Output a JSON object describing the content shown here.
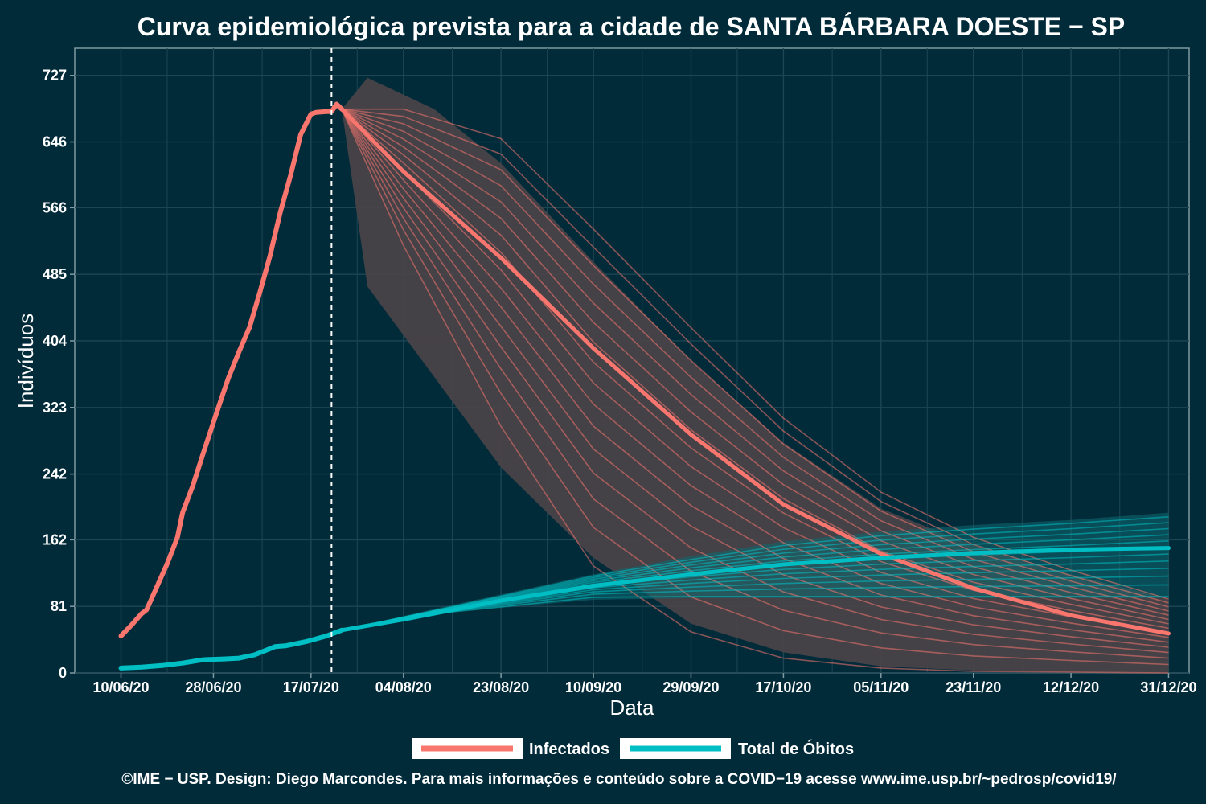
{
  "chart_data": {
    "type": "line",
    "title": "Curva epidemiológica prevista para a cidade de SANTA BÁRBARA DOESTE − SP",
    "xlabel": "Data",
    "ylabel": "Indivíduos",
    "ylim": [
      0,
      760
    ],
    "y_ticks": [
      0,
      81,
      162,
      242,
      323,
      404,
      485,
      566,
      646,
      727
    ],
    "x_ticks": [
      "10/06/20",
      "28/06/20",
      "17/07/20",
      "04/08/20",
      "23/08/20",
      "10/09/20",
      "29/09/20",
      "17/10/20",
      "05/11/20",
      "23/11/20",
      "12/12/20",
      "31/12/20"
    ],
    "x_range": [
      "2020-06-01",
      "2021-01-04"
    ],
    "forecast_start": "2020-07-21",
    "grid": true,
    "legend_position": "bottom",
    "colors": {
      "background": "#022b3a",
      "infectados": "#f8766d",
      "obitos": "#00bfc4",
      "band": "#4a4349",
      "grid": "#1d4552",
      "frame": "#7f9aa2"
    },
    "series": [
      {
        "name": "Infectados",
        "kind": "observed",
        "points": [
          [
            "2020-06-10",
            45
          ],
          [
            "2020-06-12",
            58
          ],
          [
            "2020-06-14",
            72
          ],
          [
            "2020-06-15",
            77
          ],
          [
            "2020-06-17",
            105
          ],
          [
            "2020-06-19",
            133
          ],
          [
            "2020-06-21",
            165
          ],
          [
            "2020-06-22",
            195
          ],
          [
            "2020-06-24",
            228
          ],
          [
            "2020-06-26",
            267
          ],
          [
            "2020-06-28",
            305
          ],
          [
            "2020-06-30",
            342
          ],
          [
            "2020-07-01",
            360
          ],
          [
            "2020-07-03",
            391
          ],
          [
            "2020-07-05",
            420
          ],
          [
            "2020-07-07",
            462
          ],
          [
            "2020-07-09",
            507
          ],
          [
            "2020-07-11",
            560
          ],
          [
            "2020-07-13",
            605
          ],
          [
            "2020-07-15",
            655
          ],
          [
            "2020-07-17",
            680
          ],
          [
            "2020-07-18",
            682
          ],
          [
            "2020-07-20",
            683
          ],
          [
            "2020-07-21",
            683
          ],
          [
            "2020-07-22",
            692
          ],
          [
            "2020-07-23",
            686
          ]
        ]
      },
      {
        "name": "Total de Óbitos",
        "kind": "observed",
        "points": [
          [
            "2020-06-10",
            6
          ],
          [
            "2020-06-14",
            7
          ],
          [
            "2020-06-18",
            9
          ],
          [
            "2020-06-22",
            12
          ],
          [
            "2020-06-26",
            16
          ],
          [
            "2020-06-30",
            17
          ],
          [
            "2020-07-03",
            18
          ],
          [
            "2020-07-06",
            22
          ],
          [
            "2020-07-10",
            32
          ],
          [
            "2020-07-12",
            33
          ],
          [
            "2020-07-16",
            38
          ],
          [
            "2020-07-20",
            45
          ],
          [
            "2020-07-23",
            52
          ]
        ]
      },
      {
        "name": "Infectados",
        "kind": "forecast_median",
        "points": [
          [
            "2020-07-23",
            686
          ],
          [
            "2020-08-04",
            610
          ],
          [
            "2020-08-23",
            505
          ],
          [
            "2020-09-10",
            395
          ],
          [
            "2020-09-29",
            290
          ],
          [
            "2020-10-17",
            205
          ],
          [
            "2020-11-05",
            145
          ],
          [
            "2020-11-23",
            103
          ],
          [
            "2020-12-12",
            70
          ],
          [
            "2020-12-31",
            48
          ]
        ]
      },
      {
        "name": "Total de Óbitos",
        "kind": "forecast_median",
        "points": [
          [
            "2020-07-23",
            52
          ],
          [
            "2020-08-04",
            65
          ],
          [
            "2020-08-23",
            88
          ],
          [
            "2020-09-10",
            106
          ],
          [
            "2020-09-29",
            120
          ],
          [
            "2020-10-17",
            132
          ],
          [
            "2020-11-05",
            140
          ],
          [
            "2020-11-23",
            146
          ],
          [
            "2020-12-12",
            150
          ],
          [
            "2020-12-31",
            152
          ]
        ]
      }
    ],
    "band_infectados": {
      "upper": [
        [
          "2020-07-23",
          686
        ],
        [
          "2020-07-28",
          724
        ],
        [
          "2020-08-10",
          686
        ],
        [
          "2020-08-23",
          620
        ],
        [
          "2020-09-10",
          500
        ],
        [
          "2020-09-29",
          380
        ],
        [
          "2020-10-17",
          280
        ],
        [
          "2020-11-05",
          200
        ],
        [
          "2020-11-23",
          155
        ],
        [
          "2020-12-12",
          120
        ],
        [
          "2020-12-31",
          90
        ]
      ],
      "lower": [
        [
          "2020-07-23",
          686
        ],
        [
          "2020-07-28",
          470
        ],
        [
          "2020-08-10",
          360
        ],
        [
          "2020-08-23",
          250
        ],
        [
          "2020-09-10",
          140
        ],
        [
          "2020-09-29",
          60
        ],
        [
          "2020-10-17",
          25
        ],
        [
          "2020-11-05",
          8
        ],
        [
          "2020-11-23",
          3
        ],
        [
          "2020-12-12",
          1
        ],
        [
          "2020-12-31",
          0
        ]
      ]
    },
    "band_obitos": {
      "upper": [
        [
          "2020-07-23",
          52
        ],
        [
          "2020-08-10",
          78
        ],
        [
          "2020-09-10",
          120
        ],
        [
          "2020-09-29",
          142
        ],
        [
          "2020-10-17",
          160
        ],
        [
          "2020-11-05",
          172
        ],
        [
          "2020-11-23",
          180
        ],
        [
          "2020-12-12",
          186
        ],
        [
          "2020-12-31",
          195
        ]
      ],
      "lower": [
        [
          "2020-07-23",
          52
        ],
        [
          "2020-08-10",
          72
        ],
        [
          "2020-09-10",
          89
        ],
        [
          "2020-09-29",
          91
        ],
        [
          "2020-10-17",
          91
        ],
        [
          "2020-12-31",
          91
        ]
      ]
    },
    "forecast_spread_infectados": [
      [
        "2020-07-23",
        686,
        686
      ],
      [
        "2020-08-04",
        520,
        686
      ],
      [
        "2020-08-23",
        300,
        650
      ],
      [
        "2020-09-10",
        130,
        540
      ],
      [
        "2020-09-29",
        50,
        420
      ],
      [
        "2020-10-17",
        18,
        310
      ],
      [
        "2020-11-05",
        6,
        220
      ],
      [
        "2020-11-23",
        2,
        165
      ],
      [
        "2020-12-12",
        1,
        125
      ],
      [
        "2020-12-31",
        0,
        90
      ]
    ],
    "forecast_spread_obitos": [
      [
        "2020-07-23",
        52,
        52
      ],
      [
        "2020-08-10",
        72,
        76
      ],
      [
        "2020-09-10",
        92,
        118
      ],
      [
        "2020-09-29",
        93,
        138
      ],
      [
        "2020-10-17",
        93,
        155
      ],
      [
        "2020-11-05",
        93,
        167
      ],
      [
        "2020-11-23",
        93,
        175
      ],
      [
        "2020-12-12",
        93,
        182
      ],
      [
        "2020-12-31",
        93,
        190
      ]
    ]
  },
  "legend": {
    "items": [
      {
        "label": "Infectados",
        "color": "#f8766d"
      },
      {
        "label": "Total de Óbitos",
        "color": "#00bfc4"
      }
    ]
  },
  "footer": "©IME − USP. Design: Diego Marcondes. Para mais informações e conteúdo sobre a COVID−19 acesse www.ime.usp.br/~pedrosp/covid19/"
}
